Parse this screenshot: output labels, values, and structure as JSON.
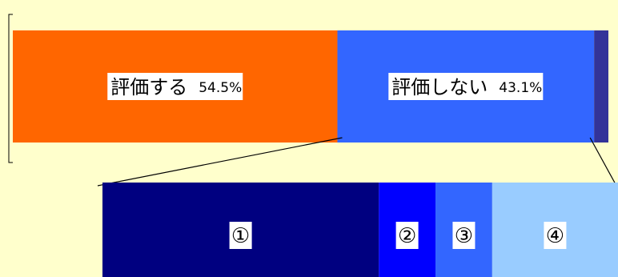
{
  "chart_data": [
    {
      "type": "stacked-bar",
      "orientation": "horizontal",
      "segments": [
        {
          "label": "評価する",
          "value": 54.5,
          "value_text": "54.5%",
          "color": "#FF6600"
        },
        {
          "label": "評価しない",
          "value": 43.1,
          "value_text": "43.1%",
          "color": "#3366FF"
        },
        {
          "label": "",
          "value": 2.4,
          "value_text": "",
          "color": "#333399"
        }
      ]
    },
    {
      "type": "stacked-bar",
      "orientation": "horizontal",
      "breakdown_of": "評価しない",
      "segments": [
        {
          "label": "①",
          "value": 53.6,
          "color": "#000080"
        },
        {
          "label": "②",
          "value": 11.0,
          "color": "#0000FF"
        },
        {
          "label": "③",
          "value": 11.0,
          "color": "#3366FF"
        },
        {
          "label": "④",
          "value": 24.4,
          "color": "#99CCFF"
        }
      ]
    }
  ]
}
